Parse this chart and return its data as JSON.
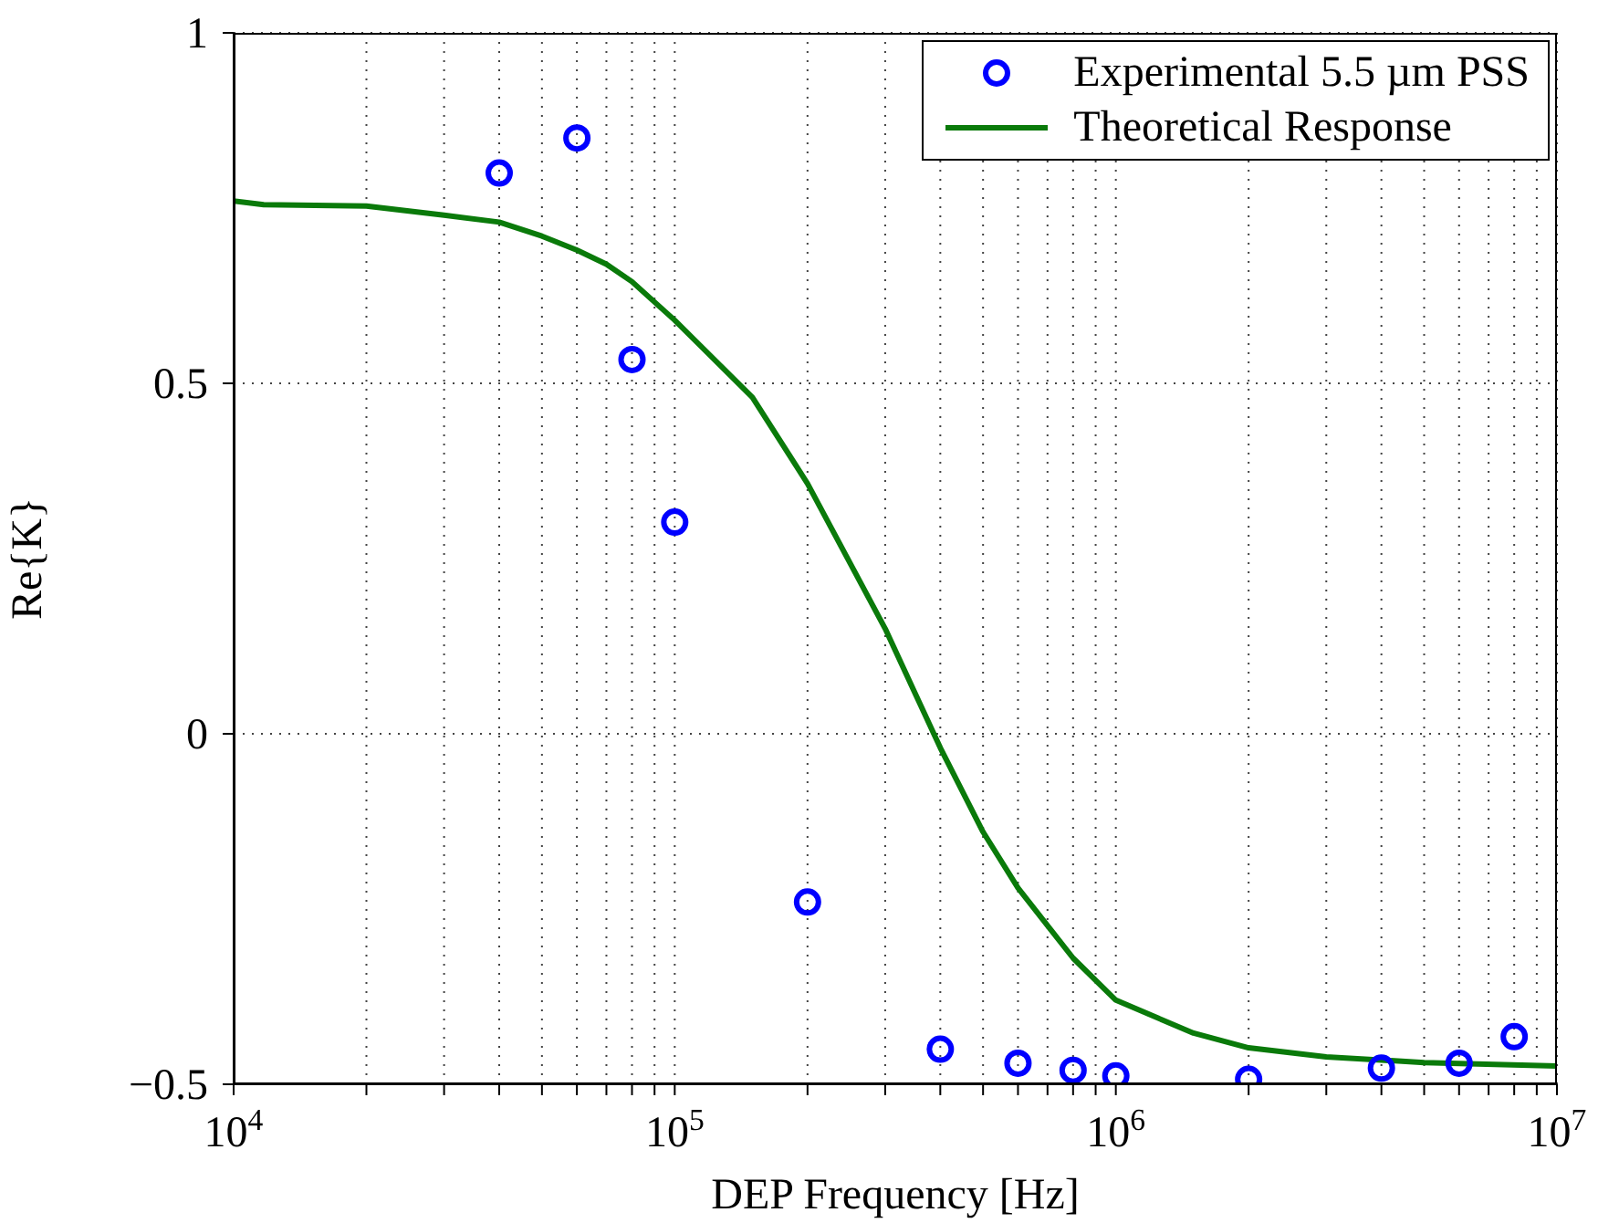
{
  "chart_data": {
    "type": "scatter",
    "xlabel": "DEP Frequency [Hz]",
    "ylabel": "Re{K}",
    "log": "x",
    "grid": true,
    "legend": "top right",
    "xlim": [
      10000,
      10000000
    ],
    "xticks": [
      {
        "value": 10000,
        "label": "10$^{4}$"
      },
      {
        "value": 20000,
        "label": null
      },
      {
        "value": 30000,
        "label": null
      },
      {
        "value": 40000,
        "label": null
      },
      {
        "value": 50000,
        "label": null
      },
      {
        "value": 60000,
        "label": null
      },
      {
        "value": 70000,
        "label": null
      },
      {
        "value": 80000,
        "label": null
      },
      {
        "value": 90000,
        "label": null
      },
      {
        "value": 100000,
        "label": "10$^{5}$"
      },
      {
        "value": 200000,
        "label": null
      },
      {
        "value": 300000,
        "label": null
      },
      {
        "value": 400000,
        "label": null
      },
      {
        "value": 500000,
        "label": null
      },
      {
        "value": 600000,
        "label": null
      },
      {
        "value": 700000,
        "label": null
      },
      {
        "value": 800000,
        "label": null
      },
      {
        "value": 900000,
        "label": null
      },
      {
        "value": 1000000,
        "label": "10$^{6}$"
      },
      {
        "value": 2000000,
        "label": null
      },
      {
        "value": 3000000,
        "label": null
      },
      {
        "value": 4000000,
        "label": null
      },
      {
        "value": 5000000,
        "label": null
      },
      {
        "value": 6000000,
        "label": null
      },
      {
        "value": 7000000,
        "label": null
      },
      {
        "value": 8000000,
        "label": null
      },
      {
        "value": 9000000,
        "label": null
      },
      {
        "value": 10000000,
        "label": "10$^{7}$"
      }
    ],
    "ylim": [
      -0.5,
      1
    ],
    "yticks": [
      {
        "value": -0.5,
        "label": "−0.5"
      },
      0,
      0.5,
      1
    ],
    "series": [
      {
        "name": "Experimental 5.5 µm PSS",
        "type": "scatter",
        "marker": "circle",
        "color": "#0000ff",
        "x": [
          40000,
          60000,
          80000,
          100000,
          200000,
          400000,
          600000,
          800000,
          1000000,
          2000000,
          4000000,
          6000000,
          8000000
        ],
        "values": [
          0.8,
          0.85,
          0.534,
          0.302,
          -0.24,
          -0.45,
          -0.47,
          -0.48,
          -0.488,
          -0.493,
          -0.477,
          -0.47,
          -0.432
        ]
      },
      {
        "name": "Theoretical Response",
        "type": "line",
        "marker": "none",
        "line_style": "solid",
        "color": "#0a7a0a",
        "x": [
          10000,
          11700,
          20000,
          30000,
          40000,
          50000,
          60000,
          70000,
          80000,
          100000,
          150000,
          200000,
          300000,
          400000,
          500000,
          600000,
          800000,
          1000000,
          1500000,
          2000000,
          3000000,
          5000000,
          10000000
        ],
        "values": [
          0.76,
          0.755,
          0.753,
          0.74,
          0.73,
          0.71,
          0.69,
          0.67,
          0.645,
          0.59,
          0.48,
          0.357,
          0.15,
          -0.02,
          -0.14,
          -0.22,
          -0.32,
          -0.38,
          -0.427,
          -0.448,
          -0.461,
          -0.469,
          -0.474
        ]
      }
    ]
  }
}
